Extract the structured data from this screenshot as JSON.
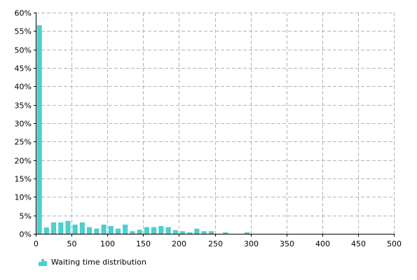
{
  "chart_data": {
    "type": "bar",
    "title": "",
    "xlabel": "",
    "ylabel": "",
    "xlim": [
      0,
      500
    ],
    "ylim": [
      0,
      60
    ],
    "bin_width": 10,
    "x_ticks": [
      0,
      50,
      100,
      150,
      200,
      250,
      300,
      350,
      400,
      450,
      500
    ],
    "x_tick_labels": [
      "0",
      "50",
      "100",
      "150",
      "200",
      "250",
      "300",
      "350",
      "400",
      "450",
      "500"
    ],
    "y_ticks": [
      0,
      5,
      10,
      15,
      20,
      25,
      30,
      35,
      40,
      45,
      50,
      55,
      60
    ],
    "y_tick_labels": [
      "0%",
      "5%",
      "10%",
      "15%",
      "20%",
      "25%",
      "30%",
      "35%",
      "40%",
      "45%",
      "50%",
      "55%",
      "60%"
    ],
    "grid": true,
    "legend_position": "bottom-left",
    "series": [
      {
        "name": "Waiting time distribution",
        "color": "#4ecece",
        "bins": [
          {
            "x": 0,
            "value": 56.6
          },
          {
            "x": 10,
            "value": 1.7
          },
          {
            "x": 20,
            "value": 3.1
          },
          {
            "x": 30,
            "value": 3.1
          },
          {
            "x": 40,
            "value": 3.5
          },
          {
            "x": 50,
            "value": 2.5
          },
          {
            "x": 60,
            "value": 3.1
          },
          {
            "x": 70,
            "value": 1.8
          },
          {
            "x": 80,
            "value": 1.4
          },
          {
            "x": 90,
            "value": 2.5
          },
          {
            "x": 100,
            "value": 2.1
          },
          {
            "x": 110,
            "value": 1.4
          },
          {
            "x": 120,
            "value": 2.5
          },
          {
            "x": 130,
            "value": 0.7
          },
          {
            "x": 140,
            "value": 1.1
          },
          {
            "x": 150,
            "value": 1.8
          },
          {
            "x": 160,
            "value": 1.8
          },
          {
            "x": 170,
            "value": 2.1
          },
          {
            "x": 180,
            "value": 1.8
          },
          {
            "x": 190,
            "value": 1.0
          },
          {
            "x": 200,
            "value": 0.7
          },
          {
            "x": 210,
            "value": 0.4
          },
          {
            "x": 220,
            "value": 1.4
          },
          {
            "x": 230,
            "value": 0.7
          },
          {
            "x": 240,
            "value": 0.7
          },
          {
            "x": 260,
            "value": 0.4
          },
          {
            "x": 290,
            "value": 0.4
          }
        ]
      }
    ]
  },
  "legend": {
    "label": "Waiting time distribution",
    "icon": "bar-chart-icon",
    "color": "#4ecece"
  }
}
